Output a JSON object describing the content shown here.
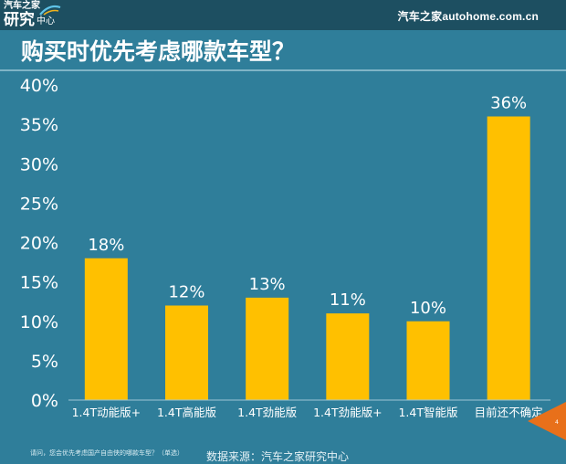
{
  "header": {
    "logo_top": "汽车之家",
    "logo_main": "研究",
    "logo_sub": "中心",
    "brand_right": "汽车之家autohome.com.cn"
  },
  "title": "购买时优先考虑哪款车型？",
  "footer": {
    "question": "请问，您会优先考虑国产自由侠的哪款车型？（单选）",
    "source": "数据来源：汽车之家研究中心"
  },
  "page_number": "4",
  "colors": {
    "background": "#2f7e9a",
    "bar": "#ffc000",
    "text": "#ffffff",
    "page_tab": "#e8701a"
  },
  "chart_data": {
    "type": "bar",
    "title": "购买时优先考虑哪款车型？",
    "categories": [
      "1.4T动能版+",
      "1.4T高能版",
      "1.4T劲能版",
      "1.4T劲能版+",
      "1.4T智能版",
      "目前还不确定"
    ],
    "values": [
      18,
      12,
      13,
      11,
      10,
      36
    ],
    "value_labels": [
      "18%",
      "12%",
      "13%",
      "11%",
      "10%",
      "36%"
    ],
    "ylim": [
      0,
      40
    ],
    "yticks": [
      0,
      5,
      10,
      15,
      20,
      25,
      30,
      35,
      40
    ],
    "ytick_labels": [
      "0%",
      "5%",
      "10%",
      "15%",
      "20%",
      "25%",
      "30%",
      "35%",
      "40%"
    ],
    "xlabel": "",
    "ylabel": "",
    "grid": false,
    "legend": "none"
  }
}
